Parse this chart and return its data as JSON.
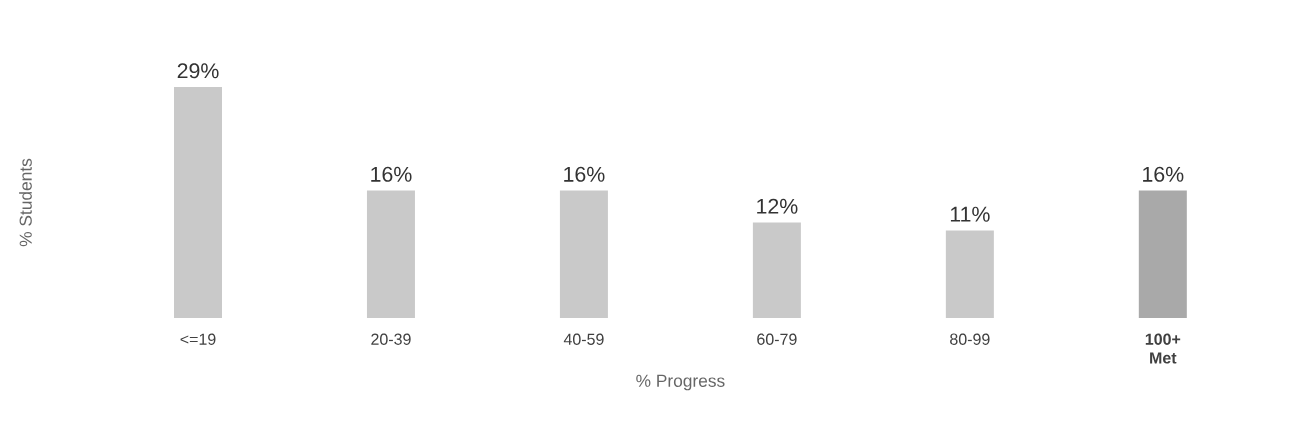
{
  "chart_data": {
    "type": "bar",
    "xlabel": "% Progress",
    "ylabel": "% Students",
    "categories": [
      "<=19",
      "20-39",
      "40-59",
      "60-79",
      "80-99",
      "100+ Met"
    ],
    "values": [
      29,
      16,
      16,
      12,
      11,
      16
    ],
    "value_labels": [
      "29%",
      "16%",
      "16%",
      "12%",
      "11%",
      "16%"
    ],
    "colors": [
      "#c9c9c9",
      "#c9c9c9",
      "#c9c9c9",
      "#c9c9c9",
      "#c9c9c9",
      "#a9a9a9"
    ],
    "ylim": [
      0,
      29
    ]
  }
}
